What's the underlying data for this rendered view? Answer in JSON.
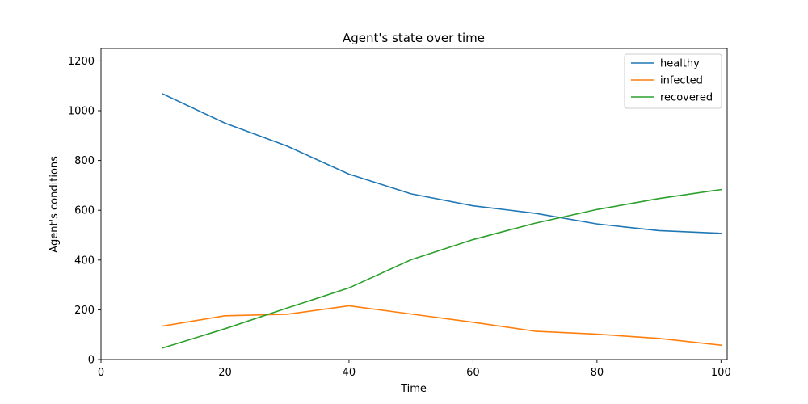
{
  "chart_data": {
    "type": "line",
    "title": "Agent's state over time",
    "xlabel": "Time",
    "ylabel": "Agent's conditions",
    "xlim": [
      0,
      101
    ],
    "ylim": [
      0,
      1250
    ],
    "x_ticks": [
      0,
      20,
      40,
      60,
      80,
      100
    ],
    "y_ticks": [
      0,
      200,
      400,
      600,
      800,
      1000,
      1200
    ],
    "grid": false,
    "legend_position": "top-right",
    "x": [
      10,
      20,
      30,
      40,
      50,
      60,
      70,
      80,
      90,
      100
    ],
    "series": [
      {
        "name": "healthy",
        "color": "#1f77b4",
        "values": [
          1067,
          950,
          858,
          745,
          666,
          618,
          588,
          545,
          518,
          507
        ]
      },
      {
        "name": "infected",
        "color": "#ff7f0e",
        "values": [
          135,
          176,
          182,
          216,
          183,
          150,
          114,
          102,
          85,
          58
        ]
      },
      {
        "name": "recovered",
        "color": "#2ca02c",
        "values": [
          47,
          124,
          207,
          288,
          401,
          482,
          548,
          603,
          647,
          683
        ]
      }
    ]
  }
}
